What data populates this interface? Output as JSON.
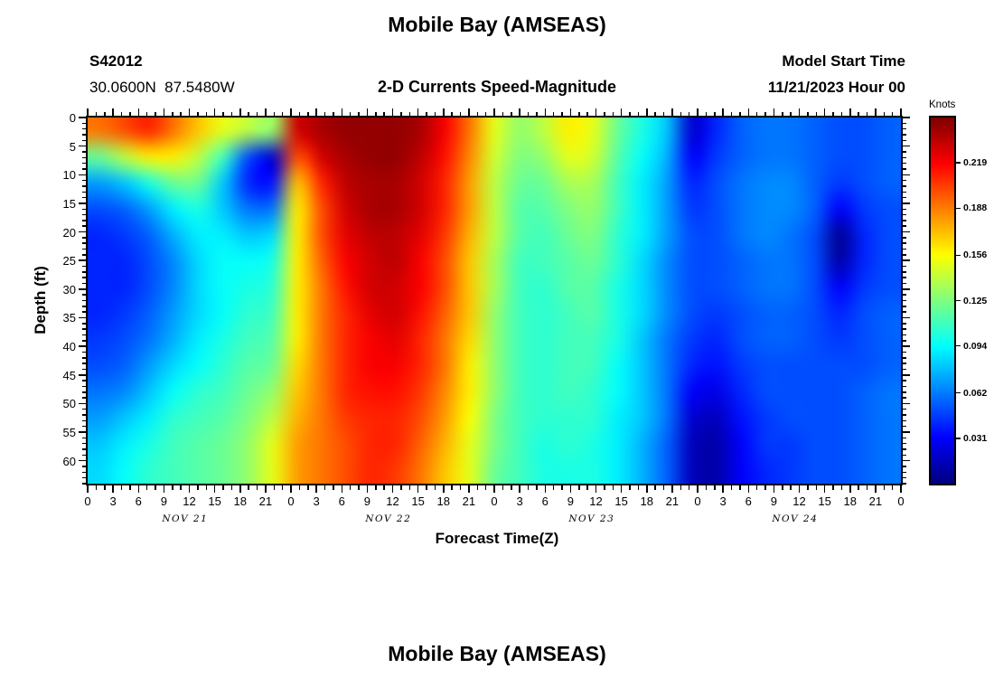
{
  "header": {
    "title": "Mobile Bay (AMSEAS)",
    "station_id": "S42012",
    "coordinates": "30.0600N  87.5480W",
    "subtitle": "2-D Currents Speed-Magnitude",
    "model_start_label": "Model Start Time",
    "model_start_value": "11/21/2023 Hour 00"
  },
  "footer": {
    "next_chart_title": "Mobile Bay (AMSEAS)"
  },
  "chart_data": {
    "type": "heatmap",
    "title": "Mobile Bay (AMSEAS)",
    "subtitle": "2-D Currents Speed-Magnitude",
    "xlabel": "Forecast Time(Z)",
    "ylabel": "Depth (ft)",
    "colorbar_label": "Knots",
    "colormap": "jet",
    "value_range_knots": [
      0,
      0.25
    ],
    "colorbar_tick_values": [
      0.031,
      0.062,
      0.094,
      0.125,
      0.156,
      0.188,
      0.219
    ],
    "colorbar_tick_labels": [
      "0.031",
      "0.062",
      "0.094",
      "0.125",
      "0.156",
      "0.188",
      "0.219"
    ],
    "x_range_hours": [
      0,
      96
    ],
    "x_major_tick_step_hours": 3,
    "x_minor_tick_step_hours": 1,
    "x_tick_labels": [
      "0",
      "3",
      "6",
      "9",
      "12",
      "15",
      "18",
      "21",
      "0",
      "3",
      "6",
      "9",
      "12",
      "15",
      "18",
      "21",
      "0",
      "3",
      "6",
      "9",
      "12",
      "15",
      "18",
      "21",
      "0",
      "3",
      "6",
      "9",
      "12",
      "15",
      "18",
      "21",
      "0"
    ],
    "x_day_labels": [
      {
        "label": "NOV 21",
        "center_hour": 11.5
      },
      {
        "label": "NOV 22",
        "center_hour": 35.5
      },
      {
        "label": "NOV 23",
        "center_hour": 59.5
      },
      {
        "label": "NOV 24",
        "center_hour": 83.5
      }
    ],
    "y_range_ft": [
      0,
      64
    ],
    "y_major_tick_step_ft": 5,
    "y_tick_labels": [
      "0",
      "5",
      "10",
      "15",
      "20",
      "25",
      "30",
      "35",
      "40",
      "45",
      "50",
      "55",
      "60"
    ],
    "grid_hours": [
      0,
      3,
      6,
      9,
      12,
      15,
      18,
      21,
      24,
      27,
      30,
      33,
      36,
      39,
      42,
      45,
      48,
      51,
      54,
      57,
      60,
      63,
      66,
      69,
      72,
      75,
      78,
      81,
      84,
      87,
      90,
      93,
      96
    ],
    "grid_depths_ft": [
      0,
      5,
      10,
      15,
      20,
      25,
      30,
      35,
      40,
      45,
      50,
      55,
      60,
      65
    ],
    "values_orientation": "rows = depths (grid_depths_ft), columns = forecast times (grid_hours)",
    "values_knots": [
      [
        0.19,
        0.2,
        0.21,
        0.19,
        0.17,
        0.15,
        0.14,
        0.13,
        0.23,
        0.24,
        0.245,
        0.245,
        0.245,
        0.24,
        0.22,
        0.19,
        0.15,
        0.13,
        0.14,
        0.16,
        0.15,
        0.12,
        0.1,
        0.08,
        0.02,
        0.04,
        0.055,
        0.06,
        0.06,
        0.055,
        0.05,
        0.05,
        0.055
      ],
      [
        0.12,
        0.14,
        0.16,
        0.16,
        0.14,
        0.11,
        0.05,
        0.02,
        0.2,
        0.23,
        0.24,
        0.245,
        0.245,
        0.235,
        0.215,
        0.185,
        0.145,
        0.125,
        0.13,
        0.15,
        0.145,
        0.115,
        0.095,
        0.075,
        0.03,
        0.045,
        0.055,
        0.06,
        0.06,
        0.055,
        0.05,
        0.05,
        0.055
      ],
      [
        0.07,
        0.08,
        0.1,
        0.12,
        0.12,
        0.08,
        0.04,
        0.035,
        0.17,
        0.21,
        0.235,
        0.24,
        0.24,
        0.23,
        0.21,
        0.18,
        0.14,
        0.12,
        0.12,
        0.135,
        0.135,
        0.11,
        0.09,
        0.07,
        0.04,
        0.05,
        0.06,
        0.065,
        0.065,
        0.055,
        0.045,
        0.05,
        0.055
      ],
      [
        0.05,
        0.055,
        0.07,
        0.09,
        0.1,
        0.08,
        0.06,
        0.06,
        0.16,
        0.2,
        0.23,
        0.24,
        0.24,
        0.23,
        0.21,
        0.18,
        0.14,
        0.115,
        0.115,
        0.125,
        0.13,
        0.11,
        0.09,
        0.07,
        0.045,
        0.05,
        0.06,
        0.065,
        0.065,
        0.055,
        0.03,
        0.045,
        0.05
      ],
      [
        0.04,
        0.045,
        0.055,
        0.075,
        0.09,
        0.09,
        0.08,
        0.085,
        0.16,
        0.2,
        0.225,
        0.235,
        0.235,
        0.225,
        0.205,
        0.175,
        0.14,
        0.115,
        0.11,
        0.12,
        0.125,
        0.105,
        0.09,
        0.07,
        0.05,
        0.05,
        0.06,
        0.065,
        0.06,
        0.05,
        0.005,
        0.04,
        0.05
      ],
      [
        0.04,
        0.04,
        0.05,
        0.065,
        0.085,
        0.095,
        0.095,
        0.1,
        0.16,
        0.195,
        0.22,
        0.23,
        0.235,
        0.22,
        0.2,
        0.17,
        0.135,
        0.11,
        0.11,
        0.115,
        0.12,
        0.105,
        0.085,
        0.065,
        0.05,
        0.05,
        0.055,
        0.06,
        0.06,
        0.05,
        0.01,
        0.04,
        0.05
      ],
      [
        0.04,
        0.04,
        0.05,
        0.065,
        0.085,
        0.095,
        0.1,
        0.105,
        0.16,
        0.19,
        0.215,
        0.23,
        0.23,
        0.22,
        0.2,
        0.17,
        0.135,
        0.11,
        0.105,
        0.115,
        0.115,
        0.1,
        0.085,
        0.065,
        0.05,
        0.05,
        0.055,
        0.06,
        0.06,
        0.05,
        0.03,
        0.045,
        0.05
      ],
      [
        0.04,
        0.045,
        0.055,
        0.07,
        0.085,
        0.095,
        0.105,
        0.11,
        0.16,
        0.19,
        0.21,
        0.225,
        0.23,
        0.215,
        0.195,
        0.17,
        0.13,
        0.11,
        0.105,
        0.11,
        0.115,
        0.1,
        0.085,
        0.065,
        0.05,
        0.045,
        0.05,
        0.055,
        0.055,
        0.05,
        0.04,
        0.05,
        0.055
      ],
      [
        0.045,
        0.05,
        0.06,
        0.075,
        0.09,
        0.1,
        0.11,
        0.115,
        0.16,
        0.19,
        0.21,
        0.22,
        0.225,
        0.21,
        0.19,
        0.165,
        0.13,
        0.11,
        0.105,
        0.11,
        0.11,
        0.1,
        0.08,
        0.06,
        0.045,
        0.04,
        0.05,
        0.055,
        0.055,
        0.05,
        0.045,
        0.05,
        0.055
      ],
      [
        0.05,
        0.055,
        0.07,
        0.085,
        0.095,
        0.105,
        0.115,
        0.12,
        0.165,
        0.19,
        0.21,
        0.22,
        0.22,
        0.21,
        0.19,
        0.16,
        0.13,
        0.11,
        0.105,
        0.11,
        0.11,
        0.095,
        0.08,
        0.06,
        0.04,
        0.035,
        0.045,
        0.05,
        0.05,
        0.05,
        0.05,
        0.05,
        0.055
      ],
      [
        0.06,
        0.065,
        0.08,
        0.095,
        0.105,
        0.11,
        0.12,
        0.13,
        0.17,
        0.19,
        0.21,
        0.215,
        0.215,
        0.205,
        0.185,
        0.16,
        0.13,
        0.11,
        0.105,
        0.11,
        0.105,
        0.095,
        0.08,
        0.06,
        0.03,
        0.025,
        0.04,
        0.05,
        0.05,
        0.05,
        0.05,
        0.055,
        0.06
      ],
      [
        0.07,
        0.08,
        0.09,
        0.105,
        0.11,
        0.115,
        0.125,
        0.14,
        0.175,
        0.19,
        0.205,
        0.21,
        0.21,
        0.2,
        0.18,
        0.155,
        0.125,
        0.11,
        0.105,
        0.105,
        0.105,
        0.09,
        0.08,
        0.06,
        0.02,
        0.015,
        0.035,
        0.045,
        0.05,
        0.05,
        0.05,
        0.055,
        0.06
      ],
      [
        0.08,
        0.09,
        0.1,
        0.11,
        0.115,
        0.12,
        0.13,
        0.15,
        0.18,
        0.19,
        0.2,
        0.21,
        0.21,
        0.195,
        0.175,
        0.15,
        0.125,
        0.11,
        0.1,
        0.105,
        0.1,
        0.09,
        0.075,
        0.055,
        0.015,
        0.01,
        0.03,
        0.045,
        0.045,
        0.05,
        0.05,
        0.055,
        0.06
      ],
      [
        0.085,
        0.095,
        0.105,
        0.11,
        0.115,
        0.12,
        0.13,
        0.15,
        0.18,
        0.19,
        0.2,
        0.21,
        0.205,
        0.19,
        0.17,
        0.15,
        0.12,
        0.11,
        0.1,
        0.1,
        0.1,
        0.09,
        0.075,
        0.055,
        0.015,
        0.01,
        0.03,
        0.04,
        0.045,
        0.05,
        0.05,
        0.055,
        0.06
      ]
    ]
  }
}
